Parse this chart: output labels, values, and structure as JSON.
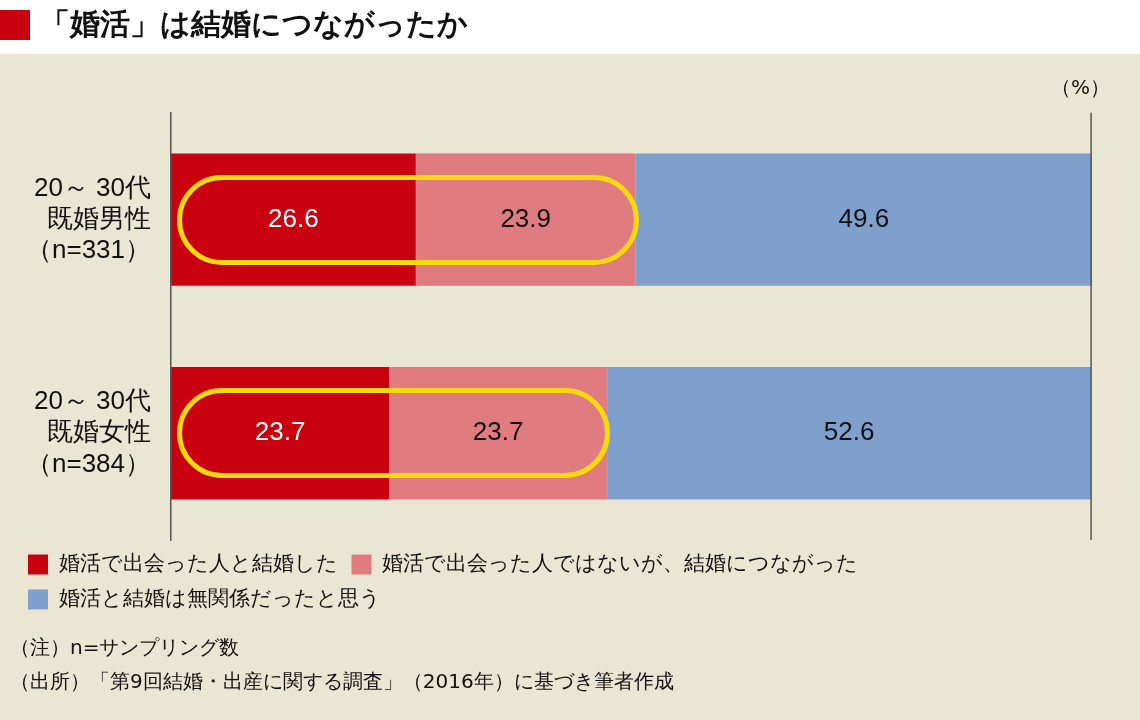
{
  "chart_data": {
    "type": "bar",
    "orientation": "horizontal",
    "stacked": true,
    "title": "「婚活」は結婚につながったか",
    "categories": [
      "20～ 30代既婚男性（n=331）",
      "20～ 30代既婚女性（n=384）"
    ],
    "series": [
      {
        "name": "婚活で出会った人と結婚した",
        "color": "#c8000f",
        "values": [
          26.6,
          23.7
        ]
      },
      {
        "name": "婚活で出会った人ではないが、結婚につながった",
        "color": "#e07c80",
        "values": [
          23.9,
          23.7
        ]
      },
      {
        "name": "婚活と結婚は無関係だったと思う",
        "color": "#7f9fcd",
        "values": [
          49.6,
          52.6
        ]
      }
    ],
    "xlim": [
      0,
      100.1
    ],
    "ref_lines": [
      {
        "axis": "x",
        "value": 100
      }
    ],
    "legend": "bottom",
    "tick_labels": "y",
    "data_labels": true,
    "annotations": [
      "（%）",
      "（注）n=サンプリング数",
      "（出所）「第9回結婚・出産に関する調査」（2016年）に基づき筆者作成"
    ]
  }
}
